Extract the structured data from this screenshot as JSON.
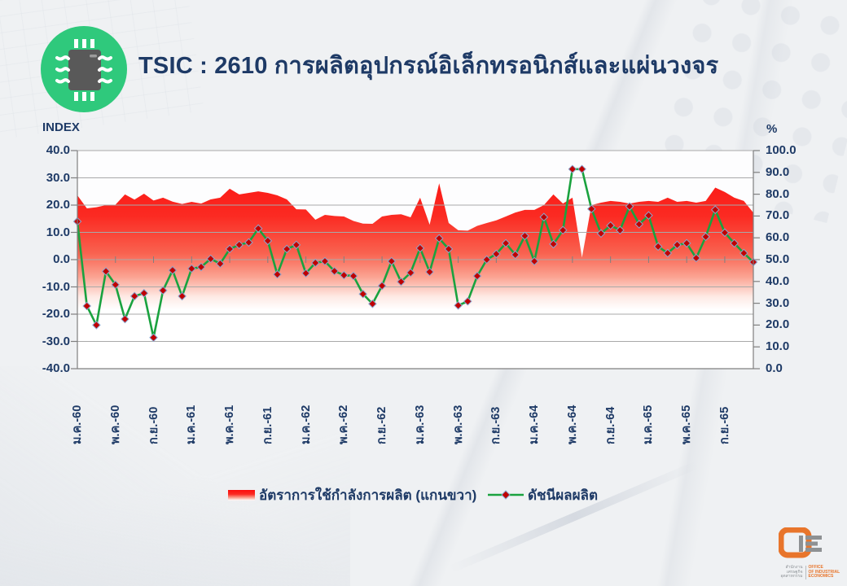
{
  "header": {
    "title": "TSIC : 2610 การผลิตอุปกรณ์อิเล็กทรอนิกส์และแผ่นวงจร",
    "icon": "microchip-icon",
    "icon_circle_color": "#2FC97C",
    "icon_chip_color": "#595959",
    "title_color": "#1E3A66"
  },
  "chart_data": {
    "type": "line+area",
    "left_axis": {
      "label": "INDEX",
      "min": -40,
      "max": 40,
      "step": 10,
      "ticks": [
        "40.0",
        "30.0",
        "20.0",
        "10.0",
        "0.0",
        "-10.0",
        "-20.0",
        "-30.0",
        "-40.0"
      ]
    },
    "right_axis": {
      "label": "%",
      "min": 0,
      "max": 100,
      "step": 10,
      "ticks": [
        "100.0",
        "90.0",
        "80.0",
        "70.0",
        "60.0",
        "50.0",
        "40.0",
        "30.0",
        "20.0",
        "10.0",
        "0.0"
      ]
    },
    "x_tick_labels": [
      "ม.ค.-60",
      "พ.ค.-60",
      "ก.ย.-60",
      "ม.ค.-61",
      "พ.ค.-61",
      "ก.ย.-61",
      "ม.ค.-62",
      "พ.ค.-62",
      "ก.ย.-62",
      "ม.ค.-63",
      "พ.ค.-63",
      "ก.ย.-63",
      "ม.ค.-64",
      "พ.ค.-64",
      "ก.ย.-64",
      "ม.ค.-65",
      "พ.ค.-65",
      "ก.ย.-65"
    ],
    "x_tick_every": 4,
    "grid": true,
    "legend_position": "bottom",
    "series": [
      {
        "name": "อัตราการใช้กำลังการผลิต (แกนขวา)",
        "type": "area",
        "axis": "right",
        "color_top": "#FC0C0C",
        "fade_to": "#FFFFFF",
        "values": [
          79.5,
          73.5,
          74.0,
          75.0,
          75.2,
          79.9,
          77.5,
          80.2,
          77.1,
          78.4,
          76.6,
          75.5,
          76.5,
          75.7,
          77.6,
          78.4,
          82.5,
          79.9,
          80.6,
          81.3,
          80.6,
          79.5,
          77.6,
          73.1,
          73.0,
          68.3,
          70.5,
          70.0,
          69.8,
          67.7,
          66.5,
          66.4,
          69.8,
          70.5,
          70.8,
          69.4,
          78.4,
          66.0,
          85.0,
          66.8,
          63.5,
          63.3,
          65.5,
          66.8,
          68.0,
          69.8,
          71.6,
          72.8,
          72.8,
          75.0,
          79.9,
          75.7,
          78.4,
          51.0,
          75.0,
          76.1,
          76.9,
          76.5,
          75.7,
          76.5,
          76.9,
          76.5,
          78.4,
          76.5,
          76.9,
          76.1,
          76.9,
          83.0,
          81.0,
          78.4,
          76.9,
          71.5
        ]
      },
      {
        "name": "ดัชนีผลผลิต",
        "type": "line",
        "axis": "left",
        "line_color": "#1AA23F",
        "marker": "diamond",
        "marker_color": "#C00000",
        "marker_edge_color": "#8CA5CE",
        "values": [
          14.0,
          -17.0,
          -24.0,
          -4.3,
          -9.2,
          -21.8,
          -13.4,
          -12.3,
          -28.6,
          -11.3,
          -3.9,
          -13.4,
          -3.3,
          -2.7,
          0.3,
          -1.5,
          3.9,
          5.4,
          6.3,
          11.4,
          6.9,
          -5.4,
          3.9,
          5.4,
          -5.0,
          -1.2,
          -0.6,
          -4.2,
          -5.7,
          -6.0,
          -12.6,
          -16.2,
          -9.6,
          -0.6,
          -8.1,
          -4.8,
          4.2,
          -4.5,
          7.8,
          3.9,
          -16.8,
          -15.3,
          -6.0,
          0.0,
          2.1,
          6.0,
          1.8,
          8.7,
          -0.6,
          15.6,
          5.7,
          10.8,
          33.2,
          33.2,
          18.6,
          9.6,
          12.5,
          10.8,
          19.5,
          13.0,
          16.2,
          4.8,
          2.4,
          5.4,
          6.0,
          0.6,
          8.4,
          18.3,
          9.9,
          6.0,
          2.4,
          -0.9
        ]
      }
    ]
  },
  "logo": {
    "thai_line1": "สำนักงาน",
    "thai_line2": "เศรษฐกิจอุตสาหกรรม",
    "en_line1": "OFFICE",
    "en_line2": "OF INDUSTRIAL ECONOMICS",
    "orange": "#E8752B"
  }
}
